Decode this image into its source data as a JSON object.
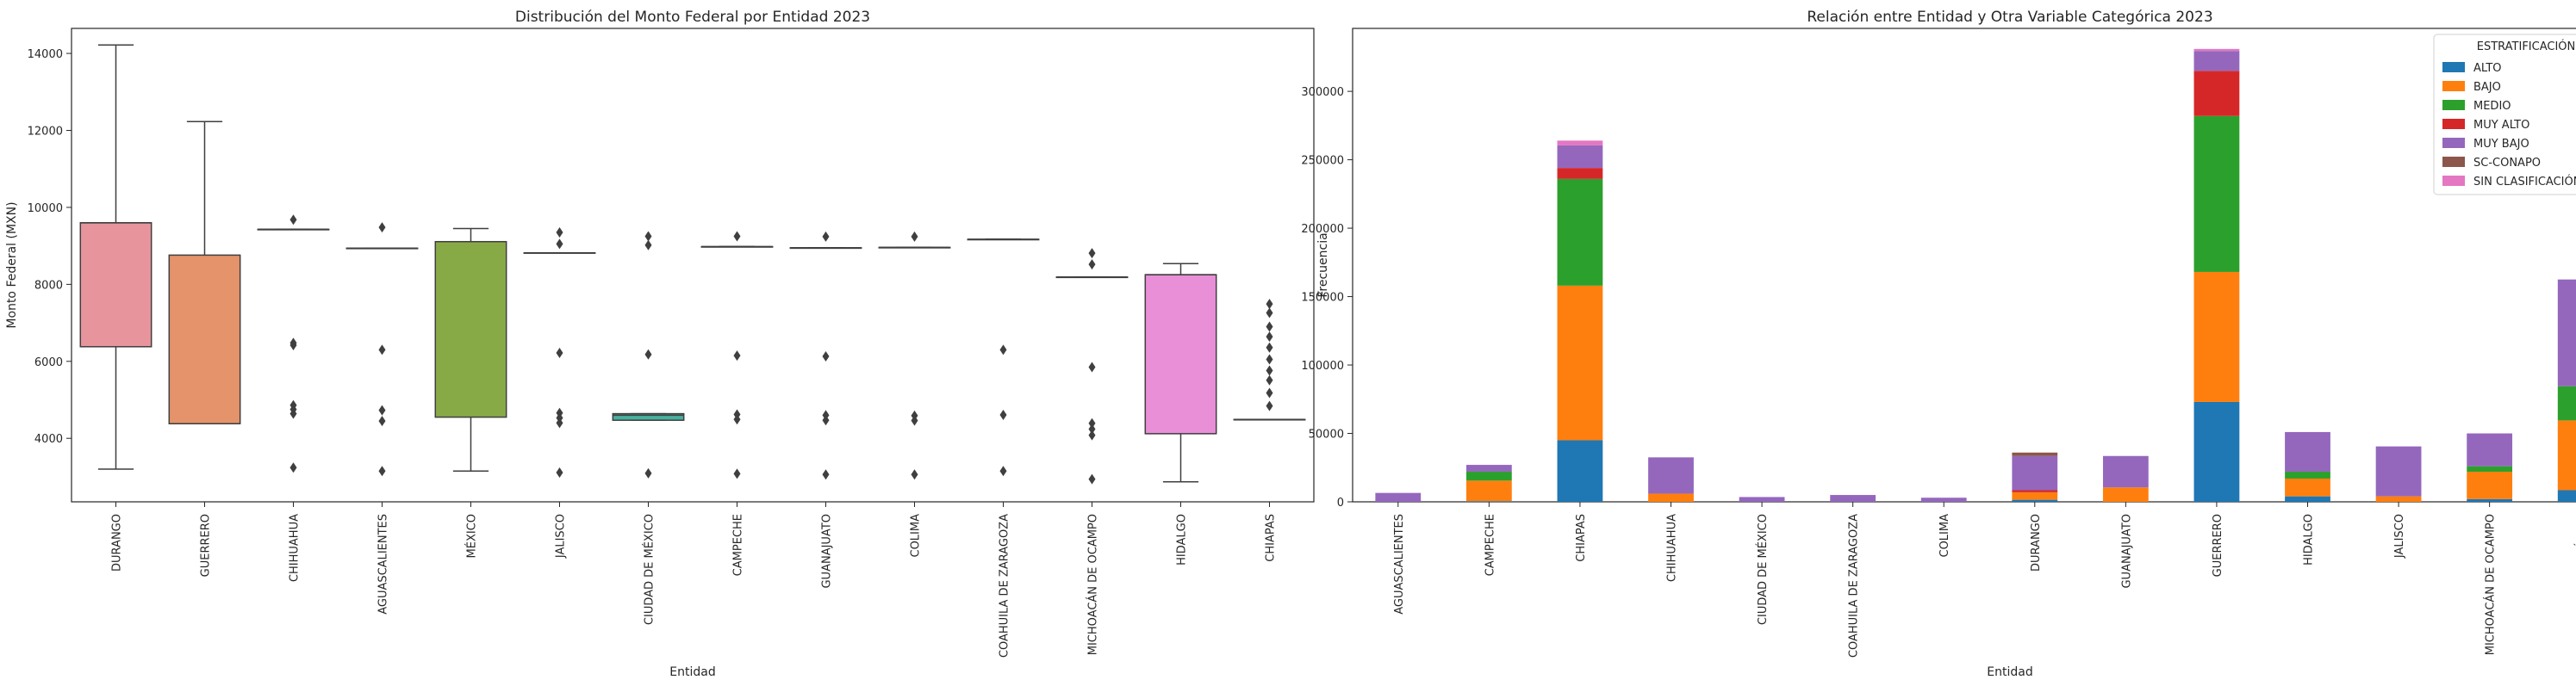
{
  "chart_data": [
    {
      "type": "box",
      "title": "Distribución del Monto Federal por Entidad 2023",
      "xlabel": "Entidad",
      "ylabel": "Monto Federal (MXN)",
      "ylim": [
        2350,
        14650
      ],
      "yticks": [
        4000,
        6000,
        8000,
        10000,
        12000,
        14000
      ],
      "categories": [
        "DURANGO",
        "GUERRERO",
        "CHIHUAHUA",
        "AGUASCALIENTES",
        "MÉXICO",
        "JALISCO",
        "CIUDAD DE MÉXICO",
        "CAMPECHE",
        "GUANAJUATO",
        "COLIMA",
        "COAHUILA DE ZARAGOZA",
        "MICHOACÁN DE OCAMPO",
        "HIDALGO",
        "CHIAPAS"
      ],
      "boxes": [
        {
          "category": "DURANGO",
          "color": "#e8949d",
          "whislo": 3200,
          "q1": 6380,
          "med": 9600,
          "q3": 9600,
          "whishi": 14220,
          "fliers": []
        },
        {
          "category": "GUERRERO",
          "color": "#e4936a",
          "whislo": 4380,
          "q1": 4380,
          "med": 4380,
          "q3": 8760,
          "whishi": 12230,
          "fliers": []
        },
        {
          "category": "CHIHUAHUA",
          "color": "#c9a45d",
          "whislo": 9430,
          "q1": 9430,
          "med": 9430,
          "q3": 9430,
          "whishi": 9430,
          "fliers": [
            9680,
            6480,
            6420,
            4860,
            4750,
            4640,
            3240
          ]
        },
        {
          "category": "AGUASCALIENTES",
          "color": "#b1ad56",
          "whislo": 8940,
          "q1": 8940,
          "med": 8940,
          "q3": 8940,
          "whishi": 8940,
          "fliers": [
            9480,
            6300,
            4730,
            4450,
            3150
          ]
        },
        {
          "category": "MÉXICO",
          "color": "#88aa46",
          "whislo": 3150,
          "q1": 4550,
          "med": 9110,
          "q3": 9110,
          "whishi": 9450,
          "fliers": []
        },
        {
          "category": "JALISCO",
          "color": "#4aac8c",
          "whislo": 8820,
          "q1": 8820,
          "med": 8820,
          "q3": 8820,
          "whishi": 8820,
          "fliers": [
            9350,
            9050,
            6220,
            4660,
            4530,
            4400,
            3110
          ]
        },
        {
          "category": "CIUDAD DE MÉXICO",
          "color": "#48b09f",
          "whislo": 4470,
          "q1": 4470,
          "med": 4600,
          "q3": 4640,
          "whishi": 4640,
          "fliers": [
            9250,
            9020,
            6180,
            3090
          ]
        },
        {
          "category": "CAMPECHE",
          "color": "#4bb0b5",
          "whislo": 8980,
          "q1": 8980,
          "med": 8980,
          "q3": 8980,
          "whishi": 8980,
          "fliers": [
            9250,
            6150,
            4620,
            4490,
            3080
          ]
        },
        {
          "category": "GUANAJUATO",
          "color": "#50adc9",
          "whislo": 8950,
          "q1": 8950,
          "med": 8950,
          "q3": 8950,
          "whishi": 8950,
          "fliers": [
            9240,
            6130,
            4600,
            4470,
            3060
          ]
        },
        {
          "category": "COLIMA",
          "color": "#5ca8db",
          "whislo": 8960,
          "q1": 8960,
          "med": 8960,
          "q3": 8960,
          "whishi": 8960,
          "fliers": [
            9240,
            4590,
            4460,
            3060
          ]
        },
        {
          "category": "COAHUILA DE ZARAGOZA",
          "color": "#98a6e0",
          "whislo": 9170,
          "q1": 9170,
          "med": 9170,
          "q3": 9170,
          "whishi": 9170,
          "fliers": [
            6300,
            4610,
            3150
          ]
        },
        {
          "category": "MICHOACÁN DE OCAMPO",
          "color": "#c69bdc",
          "whislo": 8190,
          "q1": 8190,
          "med": 8190,
          "q3": 8190,
          "whishi": 8190,
          "fliers": [
            8810,
            8520,
            5850,
            4390,
            4240,
            4080,
            2940
          ]
        },
        {
          "category": "HIDALGO",
          "color": "#e98fd8",
          "whislo": 2870,
          "q1": 4120,
          "med": 8250,
          "q3": 8250,
          "whishi": 8540,
          "fliers": []
        },
        {
          "category": "CHIAPAS",
          "color": "#ec90bf",
          "whislo": 4490,
          "q1": 4490,
          "med": 4490,
          "q3": 4490,
          "whishi": 4490,
          "fliers": [
            7490,
            7260,
            6900,
            6640,
            6360,
            6050,
            5760,
            5510,
            5180,
            4840
          ]
        }
      ]
    },
    {
      "type": "stacked_bar",
      "title": "Relación entre Entidad y Otra Variable Categórica 2023",
      "xlabel": "Entidad",
      "ylabel": "Frecuencia",
      "ylim": [
        0,
        346000
      ],
      "yticks": [
        0,
        50000,
        100000,
        150000,
        200000,
        250000,
        300000
      ],
      "legend_title": "ESTRATIFICACIÓN",
      "legend_position": "top-right",
      "categories": [
        "AGUASCALIENTES",
        "CAMPECHE",
        "CHIAPAS",
        "CHIHUAHUA",
        "CIUDAD DE MÉXICO",
        "COAHUILA DE ZARAGOZA",
        "COLIMA",
        "DURANGO",
        "GUANAJUATO",
        "GUERRERO",
        "HIDALGO",
        "JALISCO",
        "MICHOACÁN DE OCAMPO",
        "MÉXICO"
      ],
      "series": [
        {
          "name": "ALTO",
          "color": "#1f77b4",
          "values": [
            0,
            500,
            45000,
            0,
            0,
            0,
            0,
            1500,
            0,
            73000,
            4000,
            0,
            2000,
            8500
          ]
        },
        {
          "name": "BAJO",
          "color": "#ff7f0e",
          "values": [
            0,
            15000,
            113000,
            6000,
            0,
            0,
            0,
            5500,
            10500,
            95000,
            13000,
            4000,
            20000,
            51000
          ]
        },
        {
          "name": "MEDIO",
          "color": "#2ca02c",
          "values": [
            0,
            6500,
            78000,
            0,
            0,
            0,
            0,
            0,
            0,
            114000,
            5000,
            0,
            4000,
            25000
          ]
        },
        {
          "name": "MUY ALTO",
          "color": "#d62728",
          "values": [
            0,
            0,
            8000,
            0,
            0,
            0,
            0,
            1500,
            0,
            33000,
            0,
            0,
            0,
            0
          ]
        },
        {
          "name": "MUY BAJO",
          "color": "#9467bd",
          "values": [
            6500,
            5000,
            16500,
            26500,
            3500,
            5000,
            3000,
            25000,
            23000,
            14500,
            29000,
            36500,
            24000,
            78000
          ]
        },
        {
          "name": "SC-CONAPO",
          "color": "#8c564b",
          "values": [
            0,
            0,
            0,
            0,
            0,
            0,
            0,
            2500,
            0,
            0,
            0,
            0,
            0,
            0
          ]
        },
        {
          "name": "SIN CLASIFICACIÓN",
          "color": "#e377c2",
          "values": [
            0,
            0,
            3500,
            0,
            0,
            0,
            0,
            0,
            0,
            1500,
            0,
            0,
            0,
            0
          ]
        }
      ]
    }
  ]
}
